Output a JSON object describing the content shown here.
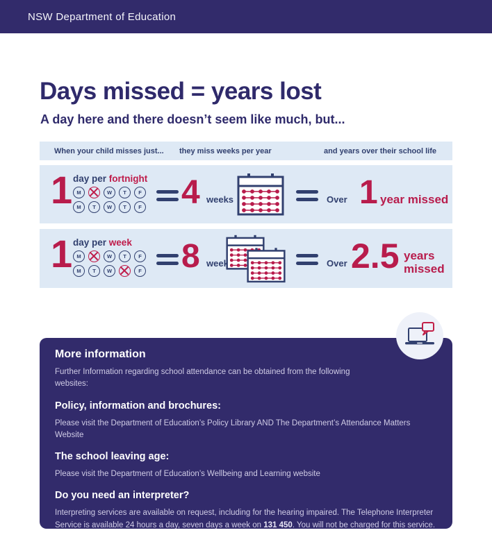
{
  "header": {
    "brand": "NSW Department of Education"
  },
  "hero": {
    "title": "Days missed = years lost",
    "subtitle": "A day here and there doesn’t seem like much, but..."
  },
  "table": {
    "columns": [
      "When your child misses just...",
      "they miss weeks per year",
      "and years over their school life"
    ],
    "rows": [
      {
        "count": "1",
        "frequency_prefix": "day per",
        "frequency_unit": "fortnight",
        "day_rows": [
          [
            "M",
            "T*",
            "W",
            "T",
            "F"
          ],
          [
            "M",
            "T",
            "W",
            "T",
            "F"
          ]
        ],
        "weeks_value": "4",
        "weeks_label": "weeks",
        "calendars": 1,
        "over_label": "Over",
        "result_value": "1",
        "result_label": "year missed"
      },
      {
        "count": "1",
        "frequency_prefix": "day per",
        "frequency_unit": "week",
        "day_rows": [
          [
            "M",
            "T*",
            "W",
            "T",
            "F"
          ],
          [
            "M",
            "T",
            "W",
            "T*",
            "F"
          ]
        ],
        "weeks_value": "8",
        "weeks_label": "weeks",
        "calendars": 2,
        "over_label": "Over",
        "result_value": "2.5",
        "result_line1": "years",
        "result_line2": "missed"
      }
    ]
  },
  "info_panel": {
    "title": "More information",
    "intro": "Further Information regarding school attendance can be obtained from the following websites:",
    "sections": [
      {
        "heading": "Policy, information and brochures:",
        "body": "Please visit the Department of Education’s Policy Library AND The Department’s Attendance Matters Website"
      },
      {
        "heading": "The school leaving age:",
        "body": "Please visit the Department of Education’s Wellbeing and Learning website"
      },
      {
        "heading": "Do you need an interpreter?",
        "body_prefix": "Interpreting services are available on request, including for the hearing impaired. The Telephone Interpreter Service is available 24 hours a day, seven days a week on ",
        "phone": "131 450",
        "body_suffix": ". You will not be charged for this service."
      }
    ]
  },
  "icons": {
    "day_circle": "weekday-circle",
    "crossed_day": "crossed-day-circle",
    "calendar": "calendar-icon",
    "laptop_chat": "laptop-with-speech-bubble-icon"
  },
  "colors": {
    "navy": "#322b6b",
    "navy_text": "#31406f",
    "crimson": "#bf1c4a",
    "crimson_big": "#b81c4c",
    "row_blue": "#dee9f5",
    "panel_body_text": "#cfcbe5",
    "icon_circle_bg": "#eef1f9",
    "white": "#ffffff"
  }
}
